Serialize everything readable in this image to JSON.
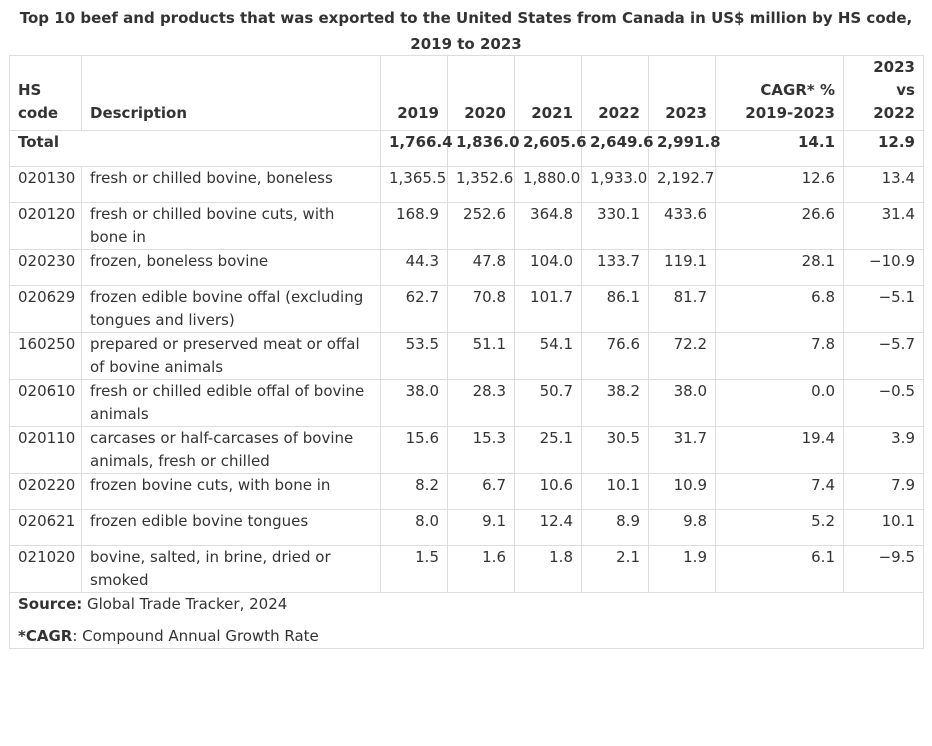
{
  "caption": "Top 10 beef and products that was exported to the United States from Canada in US$ million by HS code, 2019 to 2023",
  "headers": {
    "hs_code": "HS code",
    "description": "Description",
    "y2019": "2019",
    "y2020": "2020",
    "y2021": "2021",
    "y2022": "2022",
    "y2023": "2023",
    "cagr": "CAGR* % 2019-2023",
    "vs": "2023 vs 2022"
  },
  "total": {
    "label": "Total",
    "y2019": "1,766.4",
    "y2020": "1,836.0",
    "y2021": "2,605.6",
    "y2022": "2,649.6",
    "y2023": "2,991.8",
    "cagr": "14.1",
    "vs": "12.9"
  },
  "rows": [
    {
      "code": "020130",
      "desc": "fresh or chilled bovine, boneless",
      "y2019": "1,365.5",
      "y2020": "1,352.6",
      "y2021": "1,880.0",
      "y2022": "1,933.0",
      "y2023": "2,192.7",
      "cagr": "12.6",
      "vs": "13.4"
    },
    {
      "code": "020120",
      "desc": "fresh or chilled bovine cuts, with bone in",
      "y2019": "168.9",
      "y2020": "252.6",
      "y2021": "364.8",
      "y2022": "330.1",
      "y2023": "433.6",
      "cagr": "26.6",
      "vs": "31.4"
    },
    {
      "code": "020230",
      "desc": "frozen, boneless bovine",
      "y2019": "44.3",
      "y2020": "47.8",
      "y2021": "104.0",
      "y2022": "133.7",
      "y2023": "119.1",
      "cagr": "28.1",
      "vs": "−10.9"
    },
    {
      "code": "020629",
      "desc": "frozen edible bovine offal (excluding tongues and livers)",
      "y2019": "62.7",
      "y2020": "70.8",
      "y2021": "101.7",
      "y2022": "86.1",
      "y2023": "81.7",
      "cagr": "6.8",
      "vs": "−5.1"
    },
    {
      "code": "160250",
      "desc": "prepared or preserved meat or offal of bovine animals",
      "y2019": "53.5",
      "y2020": "51.1",
      "y2021": "54.1",
      "y2022": "76.6",
      "y2023": "72.2",
      "cagr": "7.8",
      "vs": "−5.7"
    },
    {
      "code": "020610",
      "desc": "fresh or chilled edible offal of bovine animals",
      "y2019": "38.0",
      "y2020": "28.3",
      "y2021": "50.7",
      "y2022": "38.2",
      "y2023": "38.0",
      "cagr": "0.0",
      "vs": "−0.5"
    },
    {
      "code": "020110",
      "desc": "carcases or half-carcases of bovine animals, fresh or chilled",
      "y2019": "15.6",
      "y2020": "15.3",
      "y2021": "25.1",
      "y2022": "30.5",
      "y2023": "31.7",
      "cagr": "19.4",
      "vs": "3.9"
    },
    {
      "code": "020220",
      "desc": "frozen bovine cuts, with bone in",
      "y2019": "8.2",
      "y2020": "6.7",
      "y2021": "10.6",
      "y2022": "10.1",
      "y2023": "10.9",
      "cagr": "7.4",
      "vs": "7.9"
    },
    {
      "code": "020621",
      "desc": "frozen edible bovine tongues",
      "y2019": "8.0",
      "y2020": "9.1",
      "y2021": "12.4",
      "y2022": "8.9",
      "y2023": "9.8",
      "cagr": "5.2",
      "vs": "10.1"
    },
    {
      "code": "021020",
      "desc": "bovine, salted, in brine, dried or smoked",
      "y2019": "1.5",
      "y2020": "1.6",
      "y2021": "1.8",
      "y2022": "2.1",
      "y2023": "1.9",
      "cagr": "6.1",
      "vs": "−9.5"
    }
  ],
  "footer": {
    "source_label": "Source:",
    "source_text": " Global Trade Tracker, 2024",
    "cagr_label": "*CAGR",
    "cagr_text": ": Compound Annual Growth Rate"
  }
}
